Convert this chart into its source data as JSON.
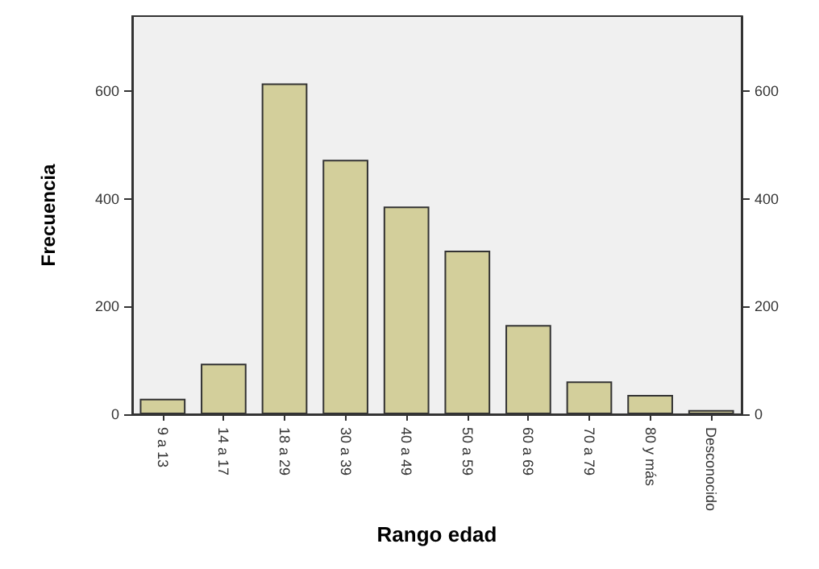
{
  "chart_data": {
    "type": "bar",
    "xlabel": "Rango edad",
    "ylabel": "Frecuencia",
    "categories": [
      "9 a 13",
      "14 a 17",
      "18 a 29",
      "30 a 39",
      "40 a 49",
      "50 a 59",
      "60 a 69",
      "70 a 79",
      "80 y más",
      "Desconocido"
    ],
    "values": [
      29,
      94,
      615,
      473,
      386,
      304,
      166,
      61,
      36,
      8
    ],
    "color": "#d3cf9b",
    "ylim": [
      0,
      740
    ],
    "yticks": [
      0,
      200,
      400,
      600
    ],
    "y2lim": [
      0,
      740
    ],
    "y2ticks": [
      0,
      200,
      400,
      600
    ],
    "grid": false
  }
}
